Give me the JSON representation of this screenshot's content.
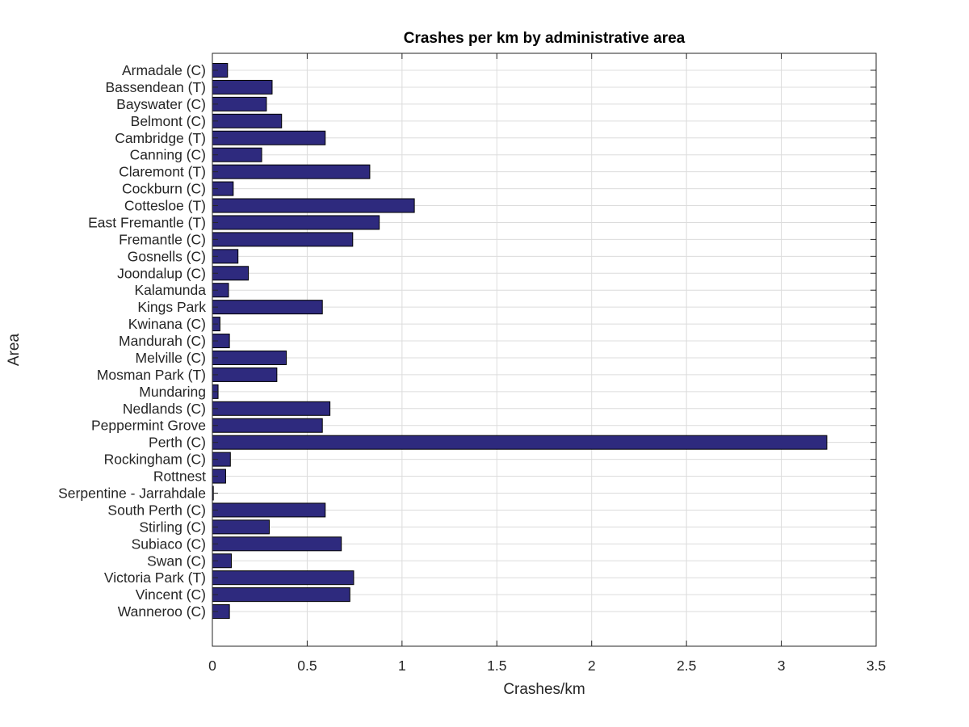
{
  "chart_data": {
    "type": "bar",
    "orientation": "horizontal",
    "title": "Crashes per km by administrative area",
    "xlabel": "Crashes/km",
    "ylabel": "Area",
    "xlim": [
      0,
      3.5
    ],
    "xticks": [
      "0",
      "0.5",
      "1",
      "1.5",
      "2",
      "2.5",
      "3",
      "3.5"
    ],
    "grid": true,
    "bar_color": "#2e2a7e",
    "categories": [
      "Armadale (C)",
      "Bassendean (T)",
      "Bayswater (C)",
      "Belmont (C)",
      "Cambridge (T)",
      "Canning (C)",
      "Claremont (T)",
      "Cockburn (C)",
      "Cottesloe (T)",
      "East Fremantle (T)",
      "Fremantle (C)",
      "Gosnells (C)",
      "Joondalup (C)",
      "Kalamunda",
      "Kings Park",
      "Kwinana (C)",
      "Mandurah (C)",
      "Melville (C)",
      "Mosman Park (T)",
      "Mundaring",
      "Nedlands (C)",
      "Peppermint Grove",
      "Perth (C)",
      "Rockingham (C)",
      "Rottnest",
      "Serpentine - Jarrahdale",
      "South Perth (C)",
      "Stirling (C)",
      "Subiaco (C)",
      "Swan (C)",
      "Victoria Park (T)",
      "Vincent (C)",
      "Wanneroo (C)"
    ],
    "values": [
      0.08,
      0.315,
      0.285,
      0.365,
      0.595,
      0.26,
      0.83,
      0.11,
      1.065,
      0.88,
      0.74,
      0.135,
      0.19,
      0.085,
      0.58,
      0.04,
      0.09,
      0.39,
      0.34,
      0.03,
      0.62,
      0.58,
      3.24,
      0.095,
      0.07,
      0.005,
      0.595,
      0.3,
      0.68,
      0.1,
      0.745,
      0.725,
      0.09
    ]
  }
}
